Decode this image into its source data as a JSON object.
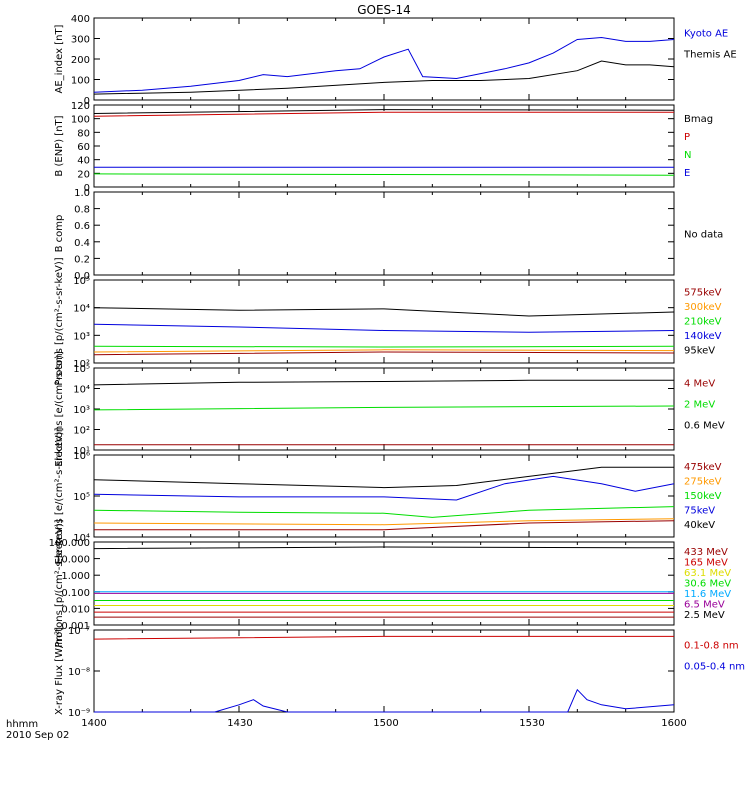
{
  "title": "GOES-14",
  "x_axis": {
    "label": "hhmm",
    "date": "2010 Sep 02",
    "ticks": [
      "1400",
      "1430",
      "1500",
      "1530",
      "1600"
    ]
  },
  "colors": {
    "black": "#000000",
    "red": "#cc0000",
    "green": "#00dd00",
    "blue": "#0000dd",
    "orange": "#ff9900",
    "yellow": "#dddd00",
    "cyan": "#00aaff",
    "maroon": "#990000",
    "purple": "#990099"
  },
  "chart_data": [
    {
      "type": "line",
      "ylabel": "AE_index [nT]",
      "yticks": [
        "0",
        "100",
        "200",
        "300",
        "400"
      ],
      "ylim": [
        0,
        420
      ],
      "legend": [
        {
          "name": "Kyoto AE",
          "color": "#0000dd"
        },
        {
          "name": "Themis AE",
          "color": "#000000"
        }
      ],
      "series": [
        {
          "name": "Kyoto AE",
          "color": "#0000dd",
          "x": [
            "14:00",
            "14:10",
            "14:20",
            "14:30",
            "14:35",
            "14:40",
            "14:50",
            "14:55",
            "15:00",
            "15:05",
            "15:08",
            "15:15",
            "15:25",
            "15:30",
            "15:35",
            "15:40",
            "15:45",
            "15:50",
            "15:55",
            "16:00"
          ],
          "y": [
            40,
            50,
            70,
            100,
            130,
            120,
            150,
            160,
            220,
            260,
            120,
            110,
            160,
            190,
            240,
            310,
            320,
            300,
            300,
            310
          ]
        },
        {
          "name": "Themis AE",
          "color": "#000000",
          "x": [
            "14:00",
            "14:20",
            "14:40",
            "15:00",
            "15:10",
            "15:20",
            "15:30",
            "15:40",
            "15:45",
            "15:50",
            "15:55",
            "16:00"
          ],
          "y": [
            30,
            40,
            60,
            90,
            100,
            100,
            110,
            150,
            200,
            180,
            180,
            170
          ]
        }
      ]
    },
    {
      "type": "line",
      "ylabel": "B (ENP) [nT]",
      "yticks": [
        "0",
        "20",
        "40",
        "60",
        "80",
        "100",
        "120"
      ],
      "ylim": [
        0,
        125
      ],
      "legend": [
        {
          "name": "Bmag",
          "color": "#000000"
        },
        {
          "name": "P",
          "color": "#cc0000"
        },
        {
          "name": "N",
          "color": "#00dd00"
        },
        {
          "name": "E",
          "color": "#0000dd"
        }
      ],
      "series": [
        {
          "name": "Bmag",
          "color": "#000000",
          "x": [
            "14:00",
            "15:00",
            "16:00"
          ],
          "y": [
            112,
            118,
            117
          ]
        },
        {
          "name": "P",
          "color": "#cc0000",
          "x": [
            "14:00",
            "15:00",
            "16:00"
          ],
          "y": [
            108,
            114,
            114
          ]
        },
        {
          "name": "N",
          "color": "#00dd00",
          "x": [
            "14:00",
            "15:00",
            "16:00"
          ],
          "y": [
            20,
            19,
            18
          ]
        },
        {
          "name": "E",
          "color": "#0000dd",
          "x": [
            "14:00",
            "15:00",
            "16:00"
          ],
          "y": [
            30,
            30,
            30
          ]
        }
      ]
    },
    {
      "type": "line",
      "ylabel": "B comp",
      "yticks": [
        "0.0",
        "0.2",
        "0.4",
        "0.6",
        "0.8",
        "1.0"
      ],
      "ylim": [
        0,
        1
      ],
      "legend": [
        {
          "name": "No data",
          "color": "#000000"
        }
      ],
      "series": []
    },
    {
      "type": "line",
      "ylabel": "Protons [p/(cm²-s-sr-keV)]",
      "yscale": "log",
      "yticks": [
        "10²",
        "10³",
        "10⁴",
        "10⁵"
      ],
      "ylim": [
        100,
        100000
      ],
      "legend": [
        {
          "name": "575keV",
          "color": "#990000"
        },
        {
          "name": "300keV",
          "color": "#ff9900"
        },
        {
          "name": "210keV",
          "color": "#00dd00"
        },
        {
          "name": "140keV",
          "color": "#0000dd"
        },
        {
          "name": "95keV",
          "color": "#000000"
        }
      ],
      "series": [
        {
          "name": "95keV",
          "color": "#000000",
          "x": [
            "14:00",
            "14:30",
            "15:00",
            "15:30",
            "16:00"
          ],
          "y": [
            10000,
            8000,
            9000,
            5000,
            7000
          ]
        },
        {
          "name": "140keV",
          "color": "#0000dd",
          "x": [
            "14:00",
            "14:30",
            "15:00",
            "15:30",
            "16:00"
          ],
          "y": [
            2500,
            2000,
            1500,
            1300,
            1500
          ]
        },
        {
          "name": "210keV",
          "color": "#00dd00",
          "x": [
            "14:00",
            "15:00",
            "16:00"
          ],
          "y": [
            400,
            380,
            400
          ]
        },
        {
          "name": "300keV",
          "color": "#ff9900",
          "x": [
            "14:00",
            "15:00",
            "16:00"
          ],
          "y": [
            250,
            300,
            280
          ]
        },
        {
          "name": "575keV",
          "color": "#990000",
          "x": [
            "14:00",
            "15:00",
            "16:00"
          ],
          "y": [
            200,
            250,
            230
          ]
        }
      ]
    },
    {
      "type": "line",
      "ylabel": "Electrons [e/(cm²-s-sr)]",
      "yscale": "log",
      "yticks": [
        "10¹",
        "10²",
        "10³",
        "10⁴",
        "10⁵"
      ],
      "ylim": [
        10,
        100000
      ],
      "legend": [
        {
          "name": "4 MeV",
          "color": "#990000"
        },
        {
          "name": "2 MeV",
          "color": "#00dd00"
        },
        {
          "name": "0.6 MeV",
          "color": "#000000"
        }
      ],
      "series": [
        {
          "name": "0.6 MeV",
          "color": "#000000",
          "x": [
            "14:00",
            "14:30",
            "15:00",
            "15:30",
            "16:00"
          ],
          "y": [
            15000,
            20000,
            22000,
            25000,
            25000
          ]
        },
        {
          "name": "2 MeV",
          "color": "#00dd00",
          "x": [
            "14:00",
            "15:00",
            "16:00"
          ],
          "y": [
            900,
            1200,
            1400
          ]
        },
        {
          "name": "4 MeV",
          "color": "#990000",
          "x": [
            "14:00",
            "15:00",
            "16:00"
          ],
          "y": [
            18,
            18,
            18
          ]
        }
      ]
    },
    {
      "type": "line",
      "ylabel": "Electrons [e/(cm²-s-sr-keV)]",
      "yscale": "log",
      "yticks": [
        "10⁴",
        "10⁵",
        "10⁶"
      ],
      "ylim": [
        10000,
        1000000
      ],
      "legend": [
        {
          "name": "475keV",
          "color": "#990000"
        },
        {
          "name": "275keV",
          "color": "#ff9900"
        },
        {
          "name": "150keV",
          "color": "#00dd00"
        },
        {
          "name": "75keV",
          "color": "#0000dd"
        },
        {
          "name": "40keV",
          "color": "#000000"
        }
      ],
      "series": [
        {
          "name": "40keV",
          "color": "#000000",
          "x": [
            "14:00",
            "14:30",
            "15:00",
            "15:15",
            "15:30",
            "15:45",
            "16:00"
          ],
          "y": [
            250000,
            200000,
            160000,
            180000,
            300000,
            500000,
            500000
          ]
        },
        {
          "name": "75keV",
          "color": "#0000dd",
          "x": [
            "14:00",
            "14:30",
            "15:00",
            "15:15",
            "15:25",
            "15:35",
            "15:45",
            "15:52",
            "16:00"
          ],
          "y": [
            110000,
            95000,
            95000,
            80000,
            200000,
            300000,
            200000,
            130000,
            200000
          ]
        },
        {
          "name": "150keV",
          "color": "#00dd00",
          "x": [
            "14:00",
            "14:30",
            "15:00",
            "15:10",
            "15:30",
            "16:00"
          ],
          "y": [
            45000,
            40000,
            38000,
            30000,
            45000,
            55000
          ]
        },
        {
          "name": "275keV",
          "color": "#ff9900",
          "x": [
            "14:00",
            "15:00",
            "15:30",
            "16:00"
          ],
          "y": [
            22000,
            20000,
            25000,
            28000
          ]
        },
        {
          "name": "475keV",
          "color": "#990000",
          "x": [
            "14:00",
            "15:00",
            "15:30",
            "16:00"
          ],
          "y": [
            15000,
            15000,
            22000,
            25000
          ]
        }
      ]
    },
    {
      "type": "line",
      "ylabel": "Protons [p/(cm²-s-sr-keV)]",
      "yscale": "log",
      "yticks": [
        "0.001",
        "0.010",
        "0.100",
        "1.000",
        "10.000",
        "100.000"
      ],
      "ylim": [
        0.001,
        100
      ],
      "legend": [
        {
          "name": "433 MeV",
          "color": "#990000"
        },
        {
          "name": "165 MeV",
          "color": "#cc0000"
        },
        {
          "name": "63.1 MeV",
          "color": "#dddd00"
        },
        {
          "name": "30.6 MeV",
          "color": "#00dd00"
        },
        {
          "name": "11.6 MeV",
          "color": "#00aaff"
        },
        {
          "name": "6.5 MeV",
          "color": "#990099"
        },
        {
          "name": "2.5 MeV",
          "color": "#000000"
        }
      ],
      "series": [
        {
          "name": "2.5 MeV",
          "color": "#000000",
          "x": [
            "14:00",
            "15:00",
            "16:00"
          ],
          "y": [
            40,
            50,
            45
          ]
        },
        {
          "name": "11.6 MeV",
          "color": "#00aaff",
          "x": [
            "14:00",
            "16:00"
          ],
          "y": [
            0.1,
            0.1
          ]
        },
        {
          "name": "6.5 MeV",
          "color": "#990099",
          "x": [
            "14:00",
            "16:00"
          ],
          "y": [
            0.08,
            0.08
          ]
        },
        {
          "name": "30.6 MeV",
          "color": "#00dd00",
          "x": [
            "14:00",
            "16:00"
          ],
          "y": [
            0.03,
            0.03
          ]
        },
        {
          "name": "63.1 MeV",
          "color": "#dddd00",
          "x": [
            "14:00",
            "16:00"
          ],
          "y": [
            0.015,
            0.015
          ]
        },
        {
          "name": "165 MeV",
          "color": "#cc0000",
          "x": [
            "14:00",
            "16:00"
          ],
          "y": [
            0.006,
            0.006
          ]
        },
        {
          "name": "433 MeV",
          "color": "#990000",
          "x": [
            "14:00",
            "16:00"
          ],
          "y": [
            0.003,
            0.003
          ]
        }
      ]
    },
    {
      "type": "line",
      "ylabel": "X-ray Flux [W/m²]",
      "yscale": "log",
      "yticks": [
        "10⁻⁹",
        "10⁻⁸",
        "10⁻⁷"
      ],
      "ylim": [
        1e-09,
        1e-07
      ],
      "legend": [
        {
          "name": "0.1-0.8 nm",
          "color": "#cc0000"
        },
        {
          "name": "0.05-0.4 nm",
          "color": "#0000dd"
        }
      ],
      "series": [
        {
          "name": "0.1-0.8 nm",
          "color": "#cc0000",
          "x": [
            "14:00",
            "15:00",
            "16:00"
          ],
          "y": [
            6e-08,
            7e-08,
            7e-08
          ]
        },
        {
          "name": "0.05-0.4 nm",
          "color": "#0000dd",
          "x": [
            "14:00",
            "14:25",
            "14:30",
            "14:33",
            "14:35",
            "14:40",
            "15:00",
            "15:38",
            "15:40",
            "15:42",
            "15:45",
            "15:50",
            "16:00"
          ],
          "y": [
            1e-09,
            1e-09,
            1.5e-09,
            2e-09,
            1.4e-09,
            1e-09,
            1e-09,
            1e-09,
            3.5e-09,
            2e-09,
            1.5e-09,
            1.2e-09,
            1.5e-09
          ]
        }
      ]
    }
  ]
}
